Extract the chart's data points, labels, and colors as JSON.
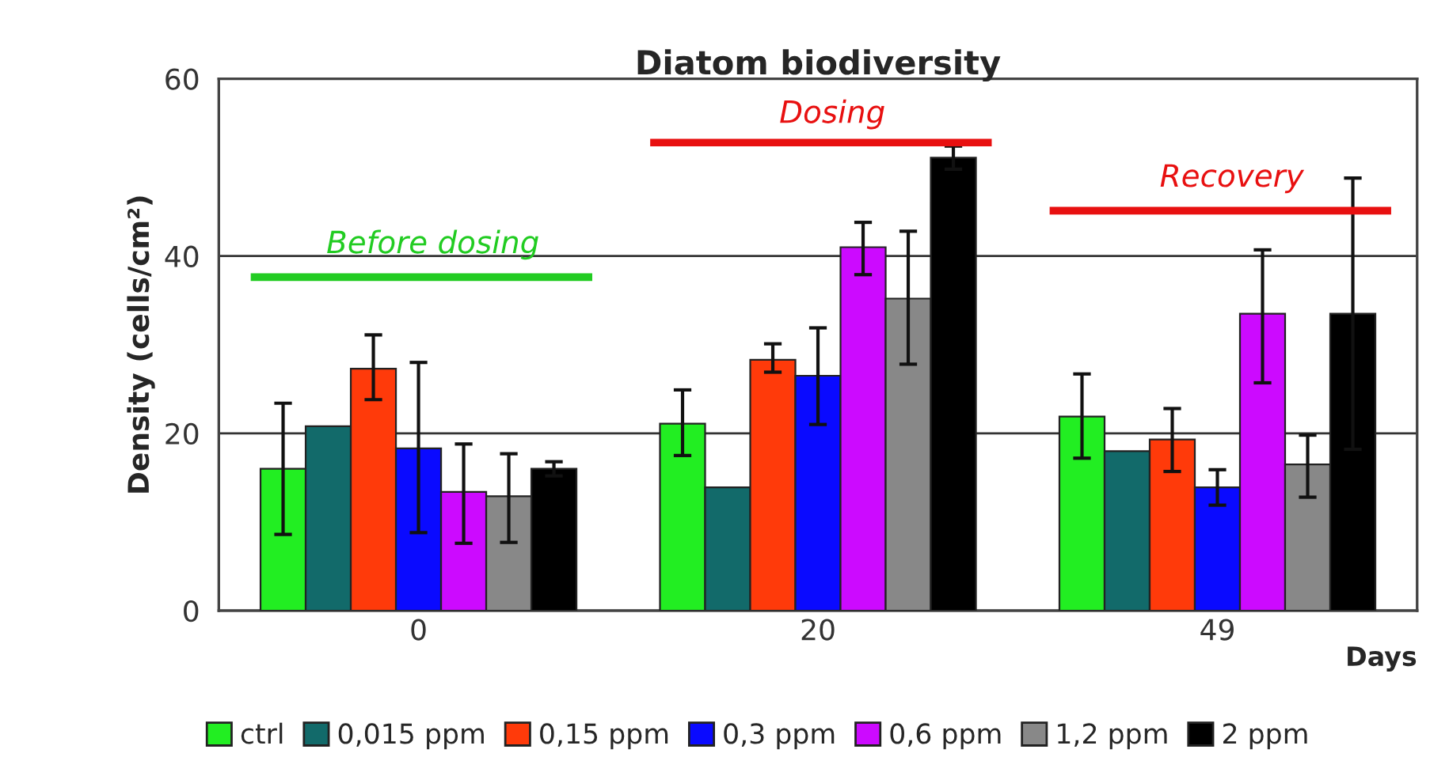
{
  "chart_data": {
    "type": "bar",
    "title": "Diatom biodiversity",
    "xlabel": "Days",
    "ylabel": "Density (cells/cm²)",
    "categories": [
      "0",
      "20",
      "49"
    ],
    "series": [
      {
        "name": "ctrl",
        "color": "#22ee22",
        "values": [
          16.0,
          21.1,
          21.9
        ],
        "errors": [
          [
            8.6,
            23.4
          ],
          [
            17.5,
            24.9
          ],
          [
            17.2,
            26.7
          ]
        ]
      },
      {
        "name": "0,015 ppm",
        "color": "#126a6a",
        "values": [
          20.8,
          13.9,
          18.0
        ],
        "errors": [
          null,
          null,
          null
        ]
      },
      {
        "name": "0,15 ppm",
        "color": "#ff3a0a",
        "values": [
          27.3,
          28.3,
          19.3
        ],
        "errors": [
          [
            23.8,
            31.1
          ],
          [
            26.9,
            30.1
          ],
          [
            15.7,
            22.8
          ]
        ]
      },
      {
        "name": "0,3 ppm",
        "color": "#0a0aff",
        "values": [
          18.3,
          26.5,
          13.9
        ],
        "errors": [
          [
            8.8,
            28.0
          ],
          [
            21.0,
            31.9
          ],
          [
            11.9,
            15.9
          ]
        ]
      },
      {
        "name": "0,6 ppm",
        "color": "#cc0aff",
        "values": [
          13.4,
          41.0,
          33.5
        ],
        "errors": [
          [
            7.6,
            18.8
          ],
          [
            37.9,
            43.8
          ],
          [
            25.7,
            40.7
          ]
        ]
      },
      {
        "name": "1,2 ppm",
        "color": "#888888",
        "values": [
          12.9,
          35.2,
          16.5
        ],
        "errors": [
          [
            7.7,
            17.7
          ],
          [
            27.8,
            42.8
          ],
          [
            12.8,
            19.8
          ]
        ]
      },
      {
        "name": "2 ppm",
        "color": "#000000",
        "values": [
          16.0,
          51.1,
          33.5
        ],
        "errors": [
          [
            15.2,
            16.8
          ],
          [
            49.8,
            52.4
          ],
          [
            18.2,
            48.8
          ]
        ]
      }
    ],
    "annotations": [
      "Before dosing",
      "Dosing",
      "Recovery"
    ],
    "ylim": [
      0,
      60
    ],
    "yticks": [
      0,
      20,
      40,
      60
    ],
    "grid": "y",
    "legend": "bottom"
  }
}
